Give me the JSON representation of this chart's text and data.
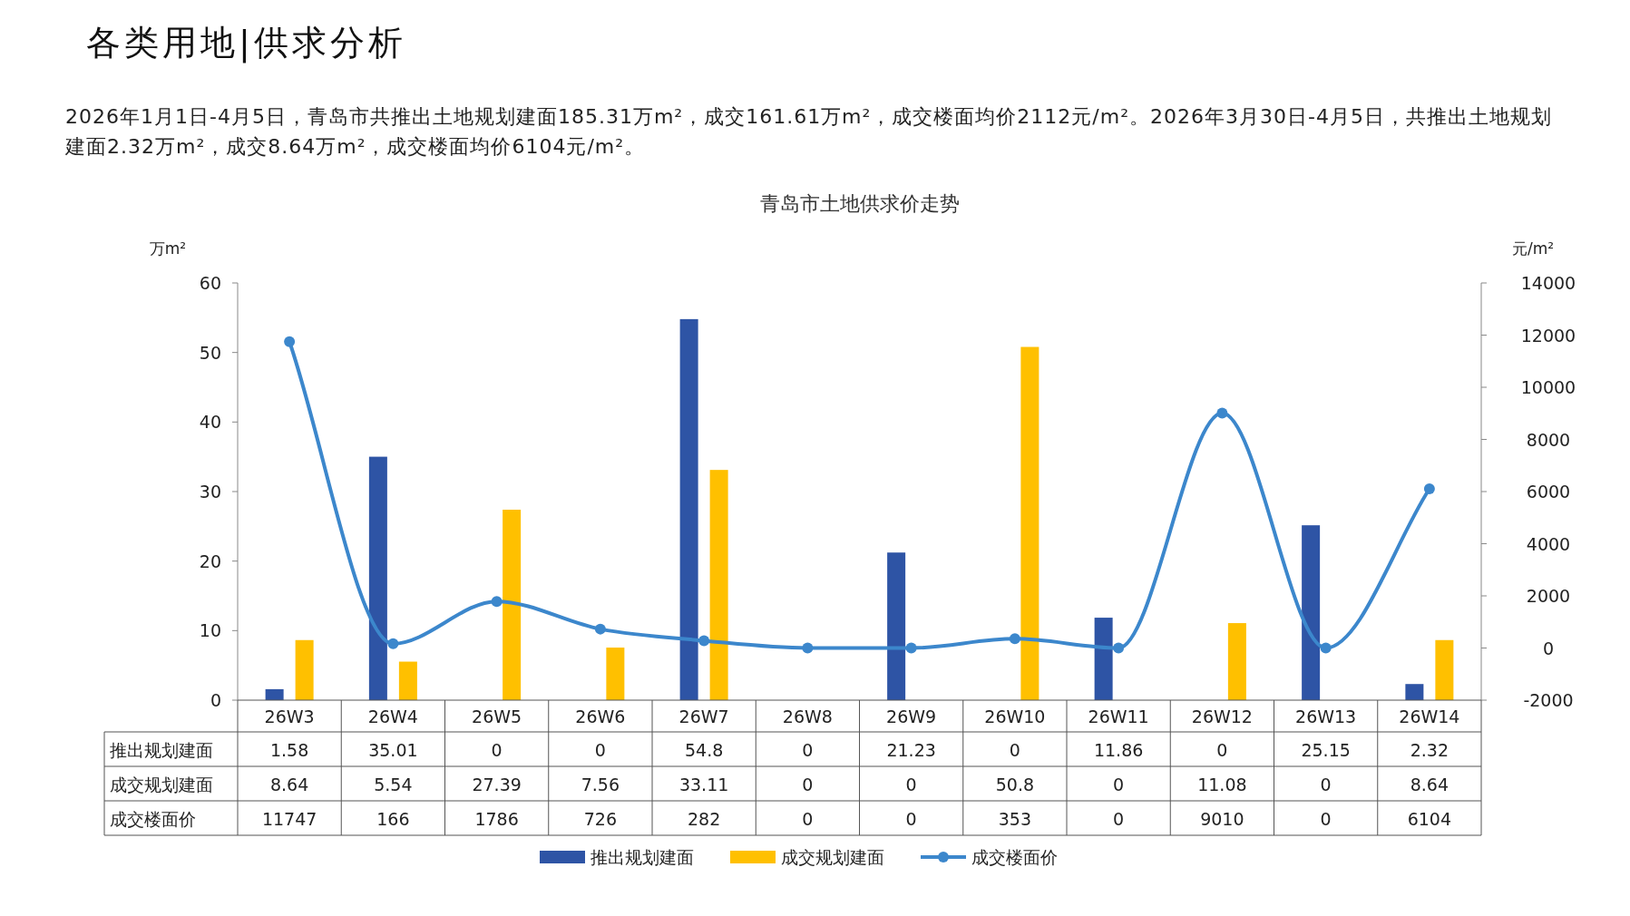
{
  "chart_data": {
    "type": "bar",
    "title": "青岛市土地供求价走势",
    "annotations": [
      "各类用地|供求分析",
      "2026年1月1日-4月5日，青岛市共推出土地规划建面185.31万m²，成交161.61万m²，成交楼面均价2112元/m²。2026年3月30日-4月5日，共推出土地规划建面2.32万m²，成交8.64万m²，成交楼面均价6104元/m²。"
    ],
    "ylabel": "万m²",
    "y2label": "元/m²",
    "categories": [
      "26W3",
      "26W4",
      "26W5",
      "26W6",
      "26W7",
      "26W8",
      "26W9",
      "26W10",
      "26W11",
      "26W12",
      "26W13",
      "26W14"
    ],
    "ylim": [
      0,
      60
    ],
    "yticks": [
      0,
      10,
      20,
      30,
      40,
      50,
      60
    ],
    "y2lim": [
      -2000,
      14000
    ],
    "y2ticks": [
      -2000,
      0,
      2000,
      4000,
      6000,
      8000,
      10000,
      12000,
      14000
    ],
    "series": [
      {
        "name": "推出规划建面",
        "color": "#2e54a5",
        "values": [
          1.58,
          35.01,
          0,
          0,
          54.8,
          0,
          21.23,
          0,
          11.86,
          0,
          25.15,
          2.32
        ]
      },
      {
        "name": "成交规划建面",
        "color": "#ffc000",
        "values": [
          8.64,
          5.54,
          27.39,
          7.56,
          33.11,
          0,
          0,
          50.8,
          0,
          11.08,
          0,
          8.64
        ]
      },
      {
        "name": "成交楼面价",
        "type": "line",
        "axis": "y2",
        "color": "#3c87cc",
        "marker": "circle",
        "values": [
          11747,
          166,
          1786,
          726,
          282,
          0,
          0,
          353,
          0,
          9010,
          0,
          6104
        ]
      }
    ],
    "data_labels": true,
    "legend": "bottom",
    "grid": false
  }
}
